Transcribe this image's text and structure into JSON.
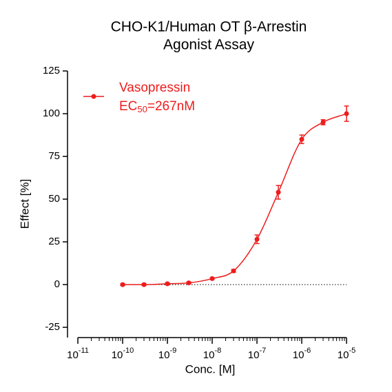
{
  "chart_data": {
    "type": "dose-response",
    "title": [
      "CHO-K1/Human OT β-Arrestin",
      "Agonist Assay"
    ],
    "xlabel": "Conc. [M]",
    "ylabel": "Effect  [%]",
    "xscale": "log",
    "xlim": [
      1e-11,
      1e-05
    ],
    "ylim": [
      -31,
      125
    ],
    "xticks": [
      {
        "value": 1e-11,
        "label": "10",
        "exponent": "-11"
      },
      {
        "value": 1e-10,
        "label": "10",
        "exponent": "-10"
      },
      {
        "value": 1e-09,
        "label": "10",
        "exponent": "-9"
      },
      {
        "value": 1e-08,
        "label": "10",
        "exponent": "-8"
      },
      {
        "value": 1e-07,
        "label": "10",
        "exponent": "-7"
      },
      {
        "value": 1e-06,
        "label": "10",
        "exponent": "-6"
      },
      {
        "value": 1e-05,
        "label": "10",
        "exponent": "-5"
      }
    ],
    "xminorticks": [
      2e-11,
      3e-11,
      4e-11,
      5e-11,
      6e-11,
      7e-11,
      8e-11,
      9e-11,
      2e-10,
      3e-10,
      4e-10,
      5e-10,
      6e-10,
      7e-10,
      8e-10,
      9e-10,
      2e-09,
      3e-09,
      4e-09,
      5e-09,
      6e-09,
      7e-09,
      8e-09,
      9e-09,
      2e-08,
      3e-08,
      4e-08,
      5e-08,
      6e-08,
      7e-08,
      8e-08,
      9e-08,
      2e-07,
      3e-07,
      4e-07,
      5e-07,
      6e-07,
      7e-07,
      8e-07,
      9e-07,
      2e-06,
      3e-06,
      4e-06,
      5e-06,
      6e-06,
      7e-06,
      8e-06,
      9e-06
    ],
    "yticks": [
      -25,
      0,
      25,
      50,
      75,
      100,
      125
    ],
    "zero_line": true,
    "legend_note": [
      "EC",
      "50",
      "=267nM"
    ],
    "series": [
      {
        "name": "Vasopressin",
        "color": "#ee1c1c",
        "x": [
          1e-10,
          3e-10,
          1e-09,
          3e-09,
          1e-08,
          3e-08,
          1e-07,
          3e-07,
          1e-06,
          3e-06,
          1e-05
        ],
        "values": [
          0,
          0,
          0.5,
          1,
          3.5,
          8,
          26.5,
          54,
          85,
          95,
          100
        ],
        "errors": [
          0.5,
          0.5,
          0.5,
          0.5,
          0.5,
          0.8,
          2.5,
          4,
          2.5,
          1.5,
          4.5
        ]
      }
    ]
  }
}
